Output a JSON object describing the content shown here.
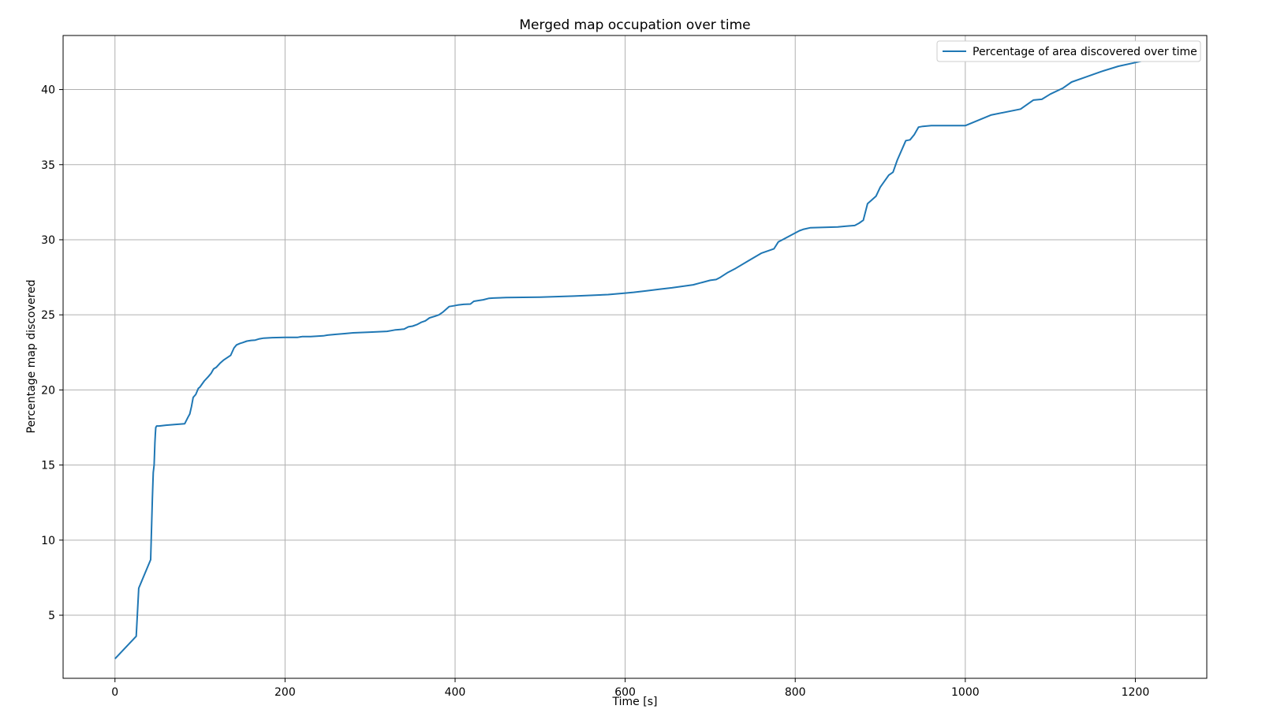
{
  "chart_data": {
    "type": "line",
    "title": "Merged map occupation over time",
    "xlabel": "Time [s]",
    "ylabel": "Percentage map discovered",
    "xlim": [
      -61,
      1284
    ],
    "ylim": [
      0.8,
      43.6
    ],
    "xticks": [
      0,
      200,
      400,
      600,
      800,
      1000,
      1200
    ],
    "yticks": [
      5,
      10,
      15,
      20,
      25,
      30,
      35,
      40
    ],
    "grid": true,
    "legend_position": "upper right",
    "series": [
      {
        "name": "Percentage of area discovered over time",
        "color": "#1f77b4",
        "x": [
          0,
          25,
          28,
          42,
          44,
          45,
          46,
          47,
          47.5,
          48,
          49,
          52,
          60,
          70,
          82,
          86,
          88,
          90,
          92,
          95,
          98,
          100,
          105,
          110,
          113,
          116,
          119,
          124,
          128,
          136,
          140,
          143,
          147,
          150,
          155,
          160,
          165,
          170,
          175,
          185,
          200,
          215,
          220,
          230,
          245,
          250,
          260,
          270,
          280,
          300,
          320,
          325,
          330,
          340,
          345,
          350,
          355,
          360,
          365,
          370,
          376,
          381,
          386,
          393,
          398,
          403,
          410,
          418,
          422,
          427,
          433,
          440,
          445,
          460,
          500,
          540,
          580,
          600,
          610,
          625,
          640,
          655,
          680,
          700,
          707,
          712,
          720,
          730,
          745,
          760,
          775,
          780,
          785,
          795,
          805,
          810,
          818,
          850,
          860,
          870,
          875,
          880,
          885,
          895,
          900,
          910,
          915,
          920,
          930,
          935,
          940,
          945,
          950,
          960,
          970,
          1000,
          1030,
          1065,
          1080,
          1090,
          1100,
          1115,
          1125,
          1140,
          1160,
          1180,
          1200,
          1215,
          1225
        ],
        "y": [
          2.1,
          3.6,
          6.8,
          8.7,
          12.8,
          14.5,
          15.0,
          16.5,
          17.1,
          17.5,
          17.6,
          17.6,
          17.65,
          17.7,
          17.75,
          18.2,
          18.4,
          18.9,
          19.5,
          19.7,
          20.1,
          20.2,
          20.6,
          20.9,
          21.1,
          21.4,
          21.5,
          21.8,
          22.0,
          22.3,
          22.8,
          23.0,
          23.1,
          23.15,
          23.25,
          23.3,
          23.32,
          23.4,
          23.45,
          23.48,
          23.5,
          23.5,
          23.55,
          23.55,
          23.6,
          23.65,
          23.7,
          23.75,
          23.8,
          23.85,
          23.9,
          23.95,
          24.0,
          24.05,
          24.2,
          24.25,
          24.35,
          24.5,
          24.6,
          24.8,
          24.9,
          25.0,
          25.2,
          25.55,
          25.6,
          25.65,
          25.7,
          25.72,
          25.9,
          25.95,
          26.0,
          26.1,
          26.12,
          26.15,
          26.18,
          26.25,
          26.35,
          26.45,
          26.5,
          26.6,
          26.7,
          26.8,
          27.0,
          27.3,
          27.35,
          27.5,
          27.8,
          28.1,
          28.6,
          29.1,
          29.4,
          29.85,
          30.0,
          30.3,
          30.6,
          30.7,
          30.8,
          30.85,
          30.9,
          30.95,
          31.1,
          31.3,
          32.4,
          32.9,
          33.5,
          34.3,
          34.5,
          35.3,
          36.6,
          36.65,
          37.0,
          37.5,
          37.55,
          37.6,
          37.6,
          37.6,
          38.3,
          38.7,
          39.3,
          39.35,
          39.7,
          40.1,
          40.5,
          40.8,
          41.2,
          41.55,
          41.8,
          42.0,
          42.05
        ]
      }
    ]
  }
}
